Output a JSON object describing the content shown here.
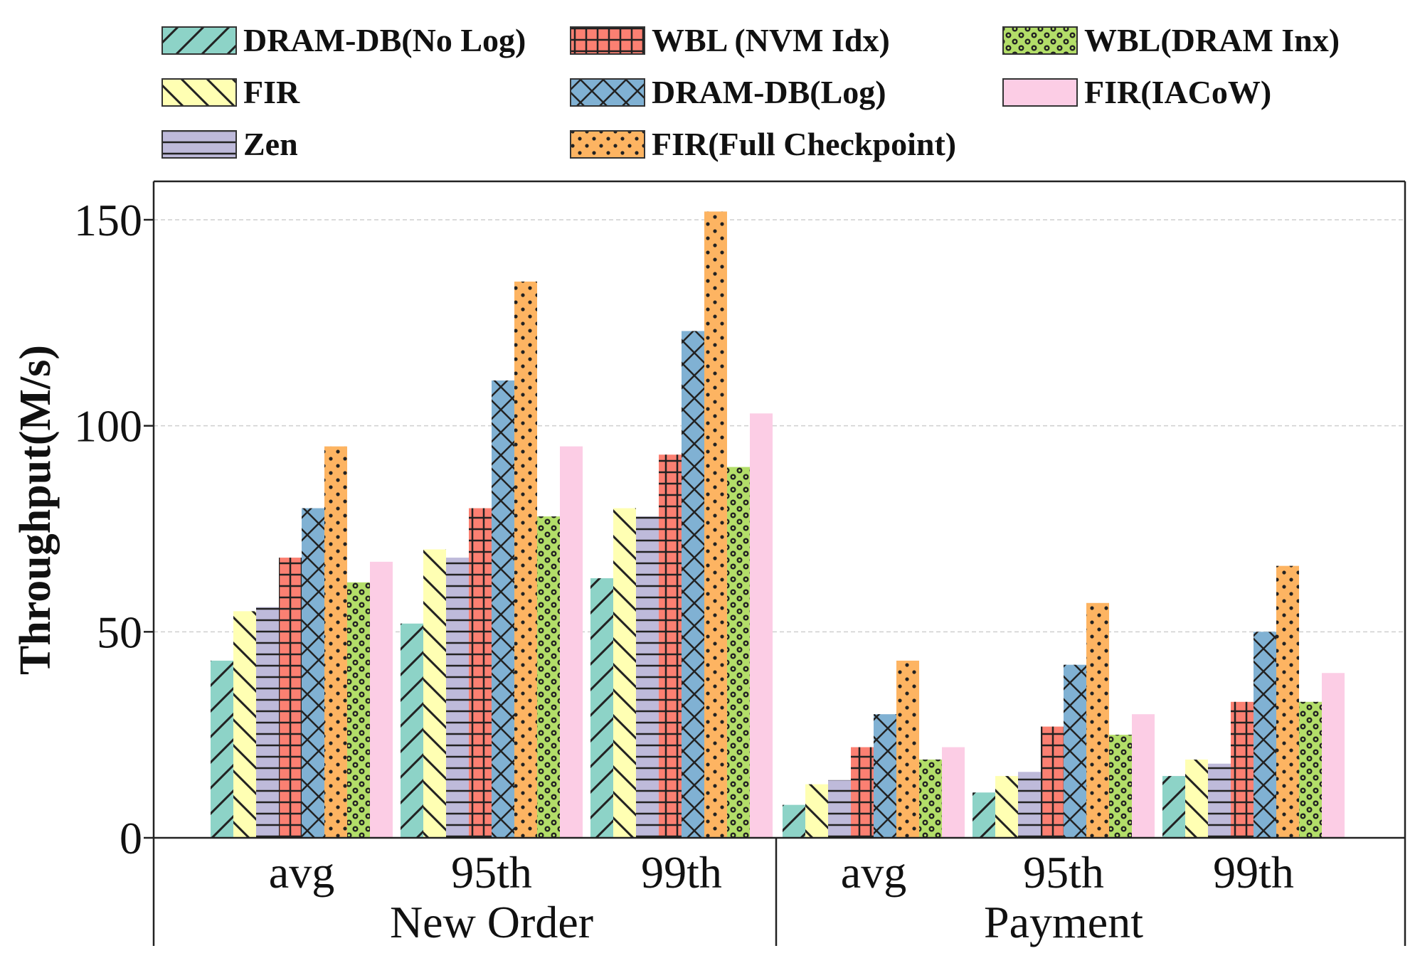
{
  "chart_data": {
    "type": "bar",
    "ylabel": "Throughput(M/s)",
    "ylim": [
      0,
      160
    ],
    "yticks": [
      0,
      50,
      100,
      150
    ],
    "grid": "horizontal-dashed",
    "legend_position": "top",
    "groups": [
      {
        "name": "New Order",
        "categories": [
          "avg",
          "95th",
          "99th"
        ]
      },
      {
        "name": "Payment",
        "categories": [
          "avg",
          "95th",
          "99th"
        ]
      }
    ],
    "series": [
      {
        "name": "DRAM-DB(No Log)",
        "color": "#8dd3c7",
        "pattern": "diag",
        "values": [
          43,
          52,
          63,
          8,
          11,
          15
        ]
      },
      {
        "name": "FIR",
        "color": "#ffffb3",
        "pattern": "antidiag",
        "values": [
          55,
          70,
          80,
          13,
          15,
          19
        ]
      },
      {
        "name": "Zen",
        "color": "#bebada",
        "pattern": "hlines",
        "values": [
          56,
          68,
          78,
          14,
          16,
          18
        ]
      },
      {
        "name": "WBL (NVM Idx)",
        "color": "#fb8072",
        "pattern": "grid",
        "values": [
          68,
          80,
          93,
          22,
          27,
          33
        ]
      },
      {
        "name": "DRAM-DB(Log)",
        "color": "#80b1d3",
        "pattern": "cross",
        "values": [
          80,
          111,
          123,
          30,
          42,
          50
        ]
      },
      {
        "name": "FIR(Full Checkpoint)",
        "color": "#fdb462",
        "pattern": "dots",
        "values": [
          95,
          135,
          152,
          43,
          57,
          66
        ]
      },
      {
        "name": "WBL(DRAM Inx)",
        "color": "#b3de69",
        "pattern": "circles",
        "values": [
          62,
          78,
          90,
          19,
          25,
          33
        ]
      },
      {
        "name": "FIR(IACoW)",
        "color": "#fccde5",
        "pattern": "none",
        "values": [
          67,
          95,
          103,
          22,
          30,
          40
        ]
      }
    ],
    "legend_order": [
      0,
      3,
      6,
      1,
      4,
      7,
      2,
      5
    ]
  }
}
